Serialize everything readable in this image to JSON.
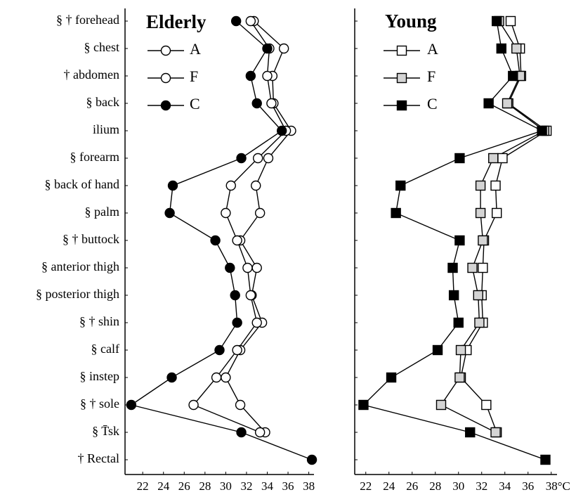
{
  "chart_data": [
    {
      "type": "line",
      "title": "Elderly",
      "categories": [
        "§ † forehead",
        "§ chest",
        "† abdomen",
        "§ back",
        "ilium",
        "§ forearm",
        "§ back of hand",
        "§ palm",
        "§ † buttock",
        "§ anterior thigh",
        "§ posterior thigh",
        "§ † shin",
        "§ calf",
        "§ instep",
        "§ † sole",
        "§ T̄sk",
        "† Rectal"
      ],
      "series": [
        {
          "name": "A",
          "marker": "circle",
          "color": "#ffffff",
          "values": [
            32.7,
            35.6,
            34.5,
            34.6,
            36.3,
            34.1,
            32.9,
            33.3,
            31.4,
            33.0,
            32.5,
            33.5,
            31.4,
            30.0,
            31.4,
            33.8,
            null
          ]
        },
        {
          "name": "F",
          "marker": "circle",
          "color": "#ffffff",
          "values": [
            32.4,
            34.2,
            34.0,
            34.4,
            35.8,
            33.1,
            30.5,
            30.0,
            31.1,
            32.1,
            32.4,
            33.0,
            31.1,
            29.1,
            26.9,
            33.3,
            null
          ]
        },
        {
          "name": "C",
          "marker": "circle",
          "color": "#000000",
          "values": [
            31.0,
            34.0,
            32.4,
            33.0,
            35.4,
            31.5,
            24.9,
            24.6,
            29.0,
            30.4,
            30.9,
            31.1,
            29.4,
            24.8,
            20.9,
            31.5,
            38.3
          ]
        }
      ],
      "xlim": [
        20.5,
        38.5
      ],
      "xticks": [
        22,
        24,
        26,
        28,
        30,
        32,
        34,
        36,
        38
      ]
    },
    {
      "type": "line",
      "title": "Young",
      "series": [
        {
          "name": "A",
          "marker": "square",
          "color": "#ffffff",
          "values": [
            34.5,
            35.3,
            35.4,
            34.3,
            37.6,
            33.8,
            33.2,
            33.3,
            32.2,
            32.1,
            32.0,
            32.1,
            30.7,
            30.2,
            32.4,
            33.3,
            null
          ]
        },
        {
          "name": "F",
          "marker": "square",
          "color": "#d4d4d4",
          "values": [
            33.5,
            35.0,
            35.3,
            34.2,
            37.4,
            33.0,
            31.9,
            31.9,
            32.1,
            31.2,
            31.7,
            31.8,
            30.2,
            30.1,
            28.5,
            33.2,
            null
          ]
        },
        {
          "name": "C",
          "marker": "square",
          "color": "#000000",
          "values": [
            33.3,
            33.7,
            34.7,
            32.6,
            37.2,
            30.1,
            25.0,
            24.6,
            30.1,
            29.5,
            29.6,
            30.0,
            28.2,
            24.2,
            21.8,
            31.0,
            37.5
          ]
        }
      ],
      "xlim": [
        20.5,
        38.5
      ],
      "xticks": [
        22,
        24,
        26,
        28,
        30,
        32,
        34,
        36,
        {
          "value": 38,
          "label": "38°C"
        }
      ]
    }
  ]
}
